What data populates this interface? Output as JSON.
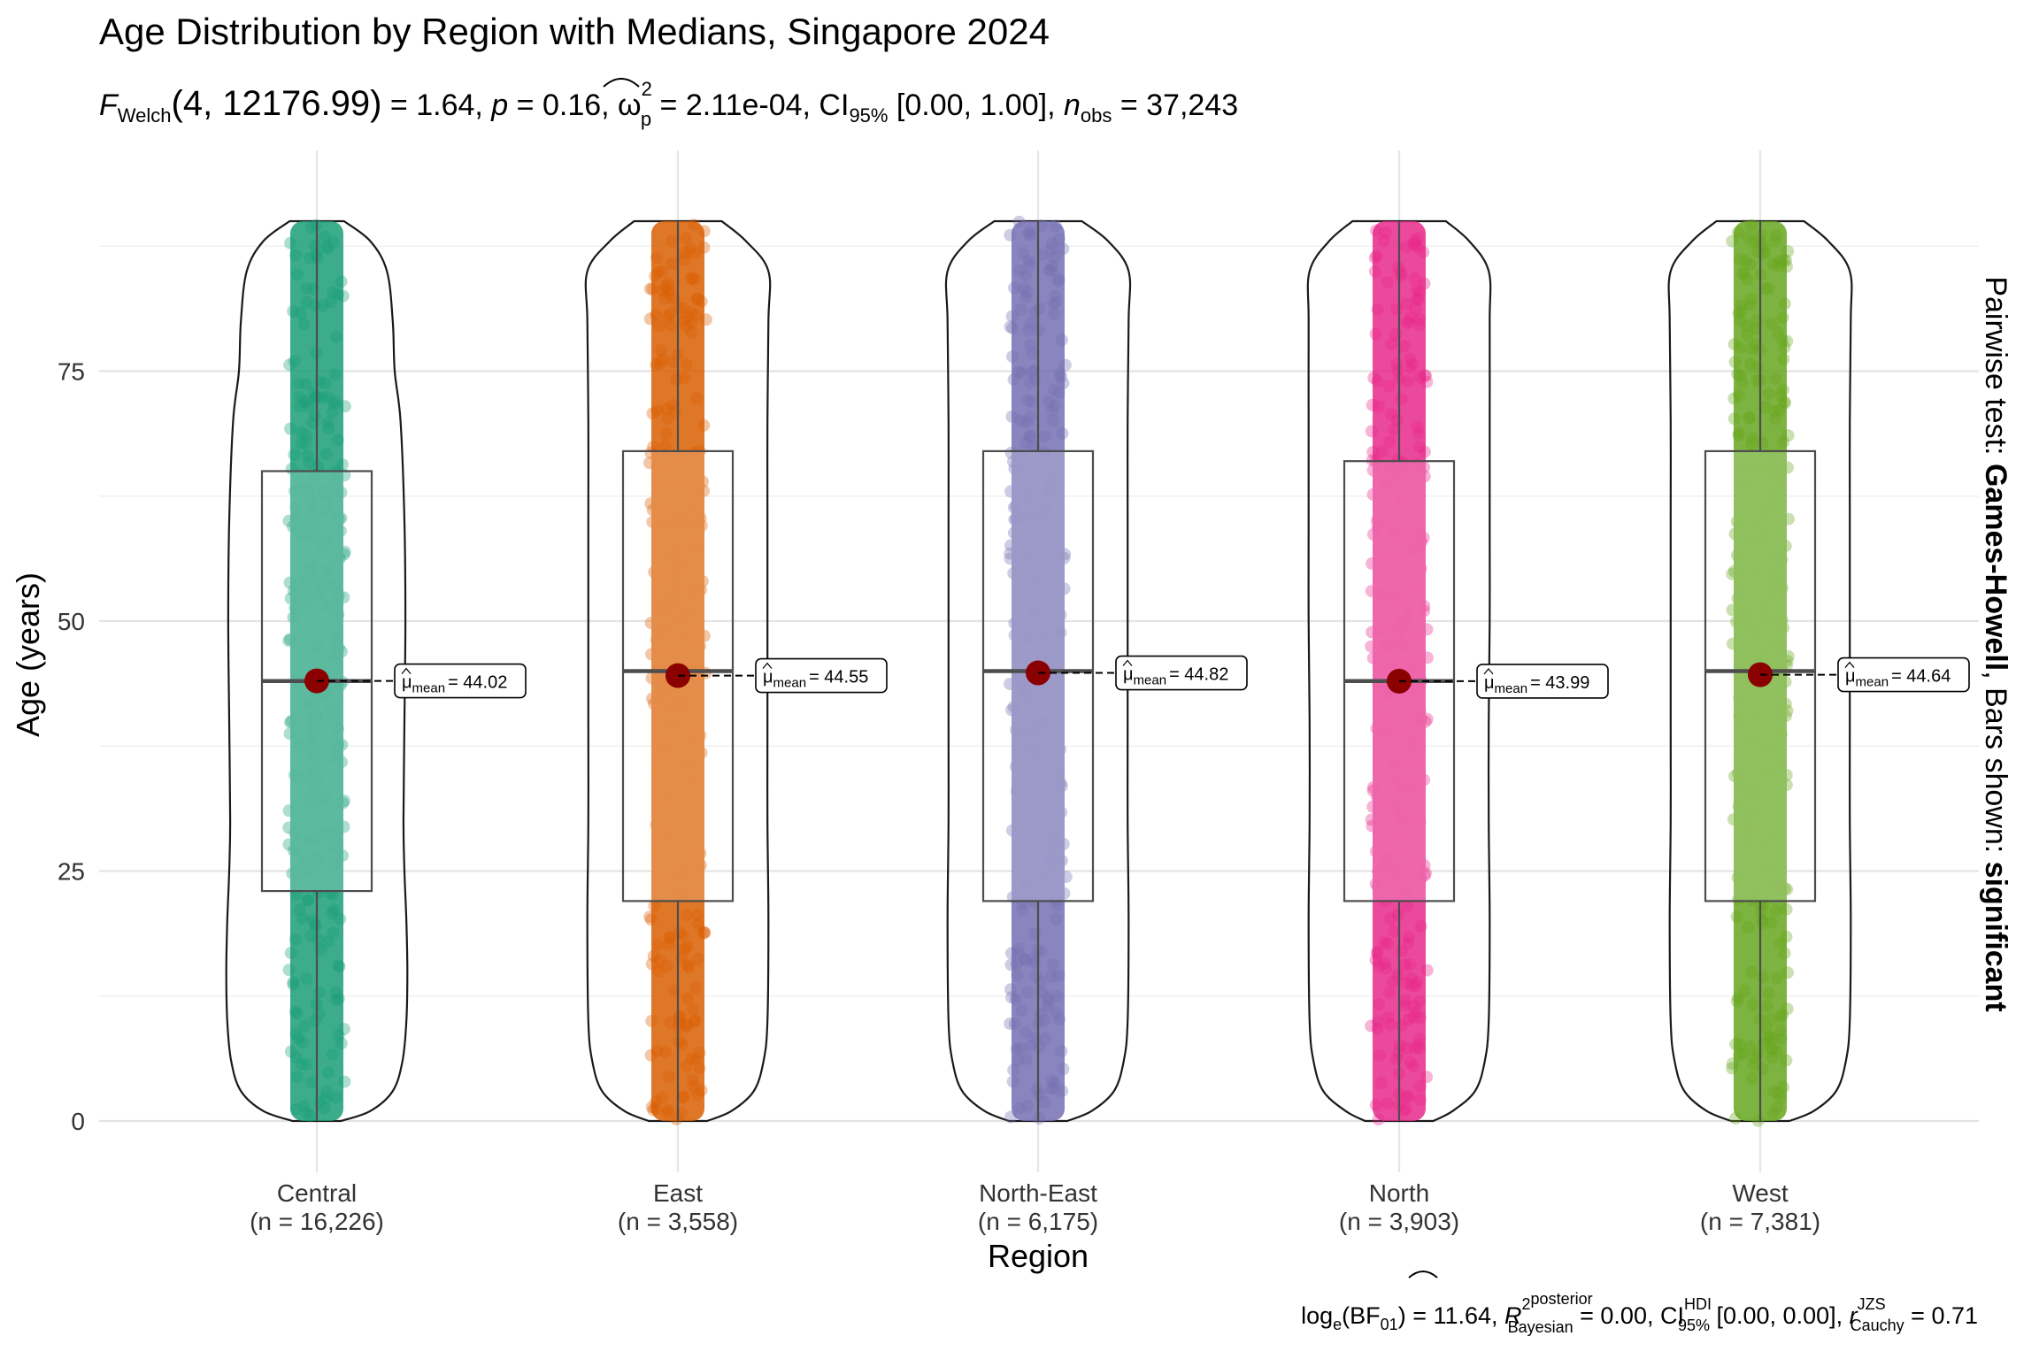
{
  "chart_data": {
    "type": "violin",
    "title": "Age Distribution by Region with Medians, Singapore 2024",
    "subtitle": {
      "f_symbol": "F",
      "f_sub": "Welch",
      "f_args": "(4, 12176.99)",
      "f_value": " = 1.64, ",
      "p_symbol": "p",
      "p_value": " = 0.16, ",
      "omega_symbol": "ω",
      "omega_sup": "2",
      "omega_sub": "p",
      "omega_value": " = 2.11e-04, CI",
      "ci_sub": "95%",
      "ci_value": " [0.00, 1.00], ",
      "n_symbol": "n",
      "n_sub": "obs",
      "n_value": " = 37,243"
    },
    "caption": {
      "log_text": "log",
      "log_sub": "e",
      "bf_open": "(BF",
      "bf_sub": "01",
      "bf_close": ") = 11.64, ",
      "r2_symbol": "R",
      "r2_sup": "2",
      "r2_sup2": "posterior",
      "r2_sub": "Bayesian",
      "r2_value": " = 0.00, CI",
      "ci_sup": "HDI",
      "ci_sub": "95%",
      "ci_value": " [0.00, 0.00], ",
      "r_symbol": "r",
      "r_sup": "JZS",
      "r_sub": "Cauchy",
      "r_value": " = 0.71"
    },
    "xlabel": "Region",
    "ylabel": "Age (years)",
    "ylim": [
      -5,
      92
    ],
    "yticks": [
      0,
      25,
      50,
      75
    ],
    "right_label": {
      "prefix": "Pairwise test: ",
      "method": "Games-Howell",
      "middle": ", Bars shown: ",
      "shown": "significant"
    },
    "mean_label_prefix": "μ",
    "mean_label_sub": "mean",
    "groups": [
      {
        "name": "Central",
        "n_label": "(n = 16,226)",
        "color": "#1B9E77",
        "min": 0,
        "q1": 23,
        "median": 44,
        "q3": 65,
        "max": 90,
        "mean": 44.02,
        "mean_text": "= 44.02",
        "violin_halfwidth": [
          [
            0,
            0.25
          ],
          [
            1,
            0.55
          ],
          [
            3,
            0.78
          ],
          [
            6,
            0.88
          ],
          [
            10,
            0.92
          ],
          [
            15,
            0.93
          ],
          [
            20,
            0.92
          ],
          [
            25,
            0.9
          ],
          [
            30,
            0.89
          ],
          [
            40,
            0.9
          ],
          [
            50,
            0.91
          ],
          [
            60,
            0.9
          ],
          [
            70,
            0.86
          ],
          [
            75,
            0.8
          ],
          [
            80,
            0.78
          ],
          [
            85,
            0.72
          ],
          [
            88,
            0.55
          ],
          [
            90,
            0.28
          ]
        ]
      },
      {
        "name": "East",
        "n_label": "(n = 3,558)",
        "color": "#D95F02",
        "min": 0,
        "q1": 22,
        "median": 45,
        "q3": 67,
        "max": 90,
        "mean": 44.55,
        "mean_text": "= 44.55",
        "violin_halfwidth": [
          [
            0,
            0.3
          ],
          [
            1,
            0.55
          ],
          [
            3,
            0.78
          ],
          [
            6,
            0.88
          ],
          [
            10,
            0.92
          ],
          [
            20,
            0.93
          ],
          [
            30,
            0.92
          ],
          [
            40,
            0.92
          ],
          [
            50,
            0.92
          ],
          [
            60,
            0.92
          ],
          [
            70,
            0.92
          ],
          [
            80,
            0.93
          ],
          [
            85,
            0.93
          ],
          [
            88,
            0.7
          ],
          [
            90,
            0.45
          ]
        ]
      },
      {
        "name": "North-East",
        "n_label": "(n = 6,175)",
        "color": "#7570B3",
        "min": 0,
        "q1": 22,
        "median": 45,
        "q3": 67,
        "max": 90,
        "mean": 44.82,
        "mean_text": "= 44.82",
        "violin_halfwidth": [
          [
            0,
            0.3
          ],
          [
            1,
            0.55
          ],
          [
            3,
            0.78
          ],
          [
            6,
            0.88
          ],
          [
            10,
            0.92
          ],
          [
            20,
            0.93
          ],
          [
            30,
            0.92
          ],
          [
            40,
            0.92
          ],
          [
            50,
            0.92
          ],
          [
            60,
            0.92
          ],
          [
            70,
            0.92
          ],
          [
            80,
            0.93
          ],
          [
            85,
            0.93
          ],
          [
            88,
            0.72
          ],
          [
            90,
            0.45
          ]
        ]
      },
      {
        "name": "North",
        "n_label": "(n = 3,903)",
        "color": "#E7298A",
        "min": 0,
        "q1": 22,
        "median": 44,
        "q3": 66,
        "max": 90,
        "mean": 43.99,
        "mean_text": "= 43.99",
        "violin_halfwidth": [
          [
            0,
            0.35
          ],
          [
            1,
            0.55
          ],
          [
            3,
            0.78
          ],
          [
            6,
            0.88
          ],
          [
            10,
            0.92
          ],
          [
            20,
            0.93
          ],
          [
            30,
            0.92
          ],
          [
            40,
            0.92
          ],
          [
            50,
            0.93
          ],
          [
            60,
            0.93
          ],
          [
            70,
            0.93
          ],
          [
            80,
            0.93
          ],
          [
            85,
            0.92
          ],
          [
            88,
            0.72
          ],
          [
            90,
            0.48
          ]
        ]
      },
      {
        "name": "West",
        "n_label": "(n = 7,381)",
        "color": "#66A61E",
        "min": 0,
        "q1": 22,
        "median": 45,
        "q3": 67,
        "max": 90,
        "mean": 44.64,
        "mean_text": "= 44.64",
        "violin_halfwidth": [
          [
            0,
            0.3
          ],
          [
            1,
            0.55
          ],
          [
            3,
            0.78
          ],
          [
            6,
            0.88
          ],
          [
            10,
            0.92
          ],
          [
            20,
            0.93
          ],
          [
            30,
            0.92
          ],
          [
            40,
            0.92
          ],
          [
            50,
            0.92
          ],
          [
            60,
            0.92
          ],
          [
            70,
            0.92
          ],
          [
            80,
            0.93
          ],
          [
            85,
            0.92
          ],
          [
            88,
            0.7
          ],
          [
            90,
            0.45
          ]
        ]
      }
    ],
    "mean_point_color": "#8B0000",
    "grid": true,
    "legend": "none"
  }
}
